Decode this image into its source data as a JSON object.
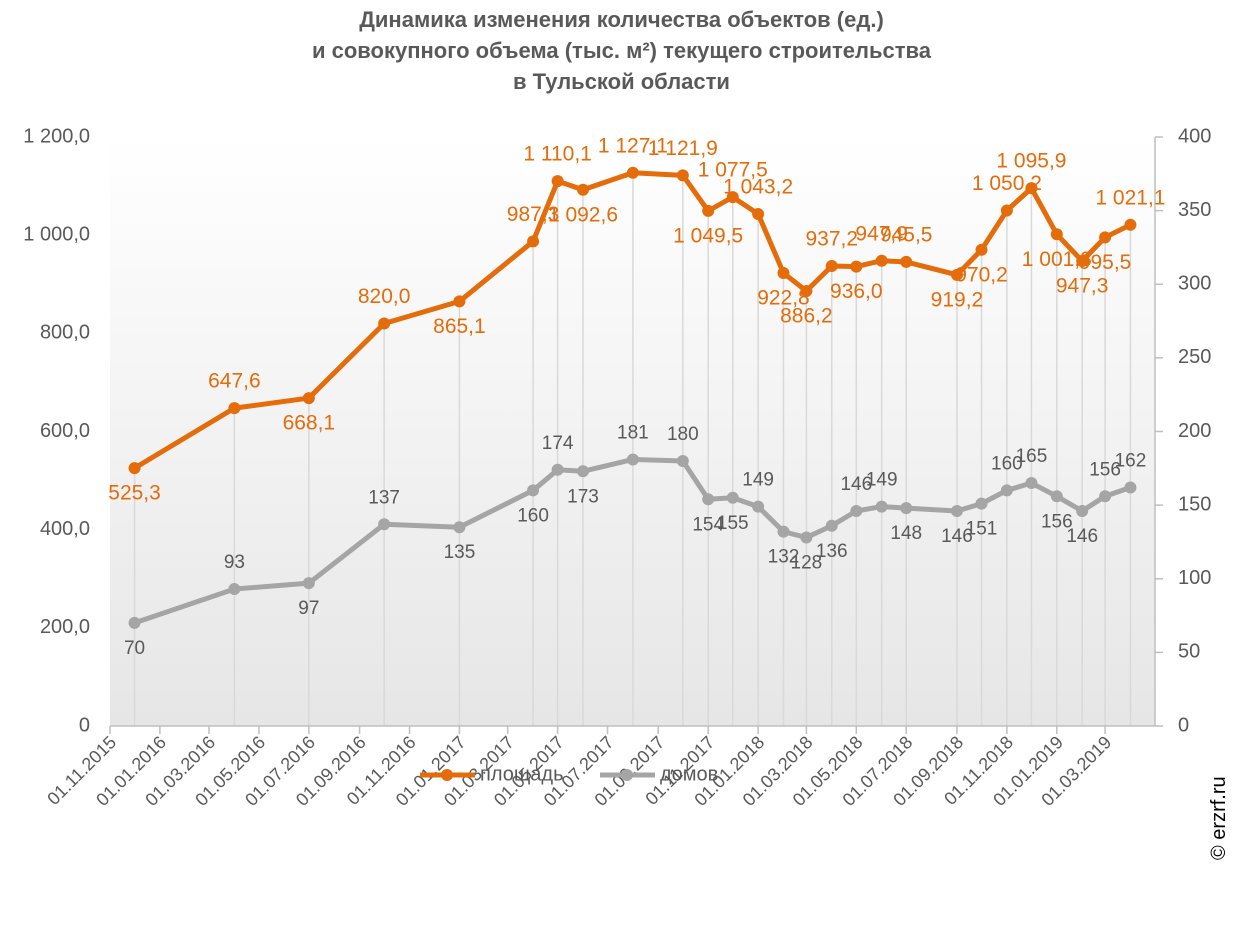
{
  "chart_data": {
    "type": "line",
    "title": "Динамика изменения количества объектов (ед.)\nи совокупного объема (тыс. м²) текущего строительства\nв Тульской области",
    "x": [
      "01.12.2015",
      "01.04.2016",
      "01.07.2016",
      "01.10.2016",
      "01.01.2017",
      "01.04.2017",
      "01.05.2017",
      "01.06.2017",
      "01.08.2017",
      "01.10.2017",
      "01.11.2017",
      "01.12.2017",
      "01.01.2018",
      "01.02.2018",
      "01.03.2018",
      "01.04.2018",
      "01.05.2018",
      "01.06.2018",
      "01.07.2018",
      "01.09.2018",
      "01.10.2018",
      "01.11.2018",
      "01.12.2018",
      "01.01.2019",
      "01.02.2019",
      "01.03.2019",
      "01.04.2019"
    ],
    "series": [
      {
        "name": "площадь",
        "color": "#e46c0a",
        "axis": "y",
        "values": [
          525.3,
          647.6,
          668.1,
          820.0,
          865.1,
          987.3,
          1110.1,
          1092.6,
          1127.1,
          1121.9,
          1049.5,
          1077.5,
          1043.2,
          922.8,
          886.2,
          937.2,
          936.0,
          947.9,
          945.5,
          919.2,
          970.2,
          1050.2,
          1095.9,
          1001.8,
          947.3,
          995.5,
          1021.1
        ],
        "value_labels": [
          "525,3",
          "647,6",
          "668,1",
          "820,0",
          "865,1",
          "987,3",
          "1 110,1",
          "1 092,6",
          "1 127,1",
          "1 121,9",
          "1 049,5",
          "1 077,5",
          "1 043,2",
          "922,8",
          "886,2",
          "937,2",
          "936,0",
          "947,9",
          "945,5",
          "919,2",
          "970,2",
          "1 050,2",
          "1 095,9",
          "1 001,8",
          "947,3",
          "995,5",
          "1 021,1"
        ]
      },
      {
        "name": "домов",
        "color": "#a5a5a5",
        "axis": "y2",
        "values": [
          70,
          93,
          97,
          137,
          135,
          160,
          174,
          173,
          181,
          180,
          154,
          155,
          149,
          132,
          128,
          136,
          146,
          149,
          148,
          146,
          151,
          160,
          165,
          156,
          146,
          156,
          162
        ]
      }
    ],
    "xlim": [
      "01.11.2015",
      "01.05.2019"
    ],
    "xticks": [
      "01.11.2015",
      "01.01.2016",
      "01.03.2016",
      "01.05.2016",
      "01.07.2016",
      "01.09.2016",
      "01.11.2016",
      "01.01.2017",
      "01.03.2017",
      "01.05.2017",
      "01.07.2017",
      "01.09.2017",
      "01.11.2017",
      "01.01.2018",
      "01.03.2018",
      "01.05.2018",
      "01.07.2018",
      "01.09.2018",
      "01.11.2018",
      "01.01.2019",
      "01.03.2019"
    ],
    "ylim": [
      0,
      1200
    ],
    "yticks": [
      0,
      {
        "value": 200,
        "label": "200,0"
      },
      {
        "value": 400,
        "label": "400,0"
      },
      {
        "value": 600,
        "label": "600,0"
      },
      {
        "value": 800,
        "label": "800,0"
      },
      {
        "value": 1000,
        "label": "1 000,0"
      },
      {
        "value": 1200,
        "label": "1 200,0"
      }
    ],
    "y2lim": [
      0,
      400
    ],
    "y2ticks": [
      0,
      50,
      100,
      150,
      200,
      250,
      300,
      350,
      400
    ],
    "legend": "bottom",
    "copyright": "© erzrf.ru"
  }
}
